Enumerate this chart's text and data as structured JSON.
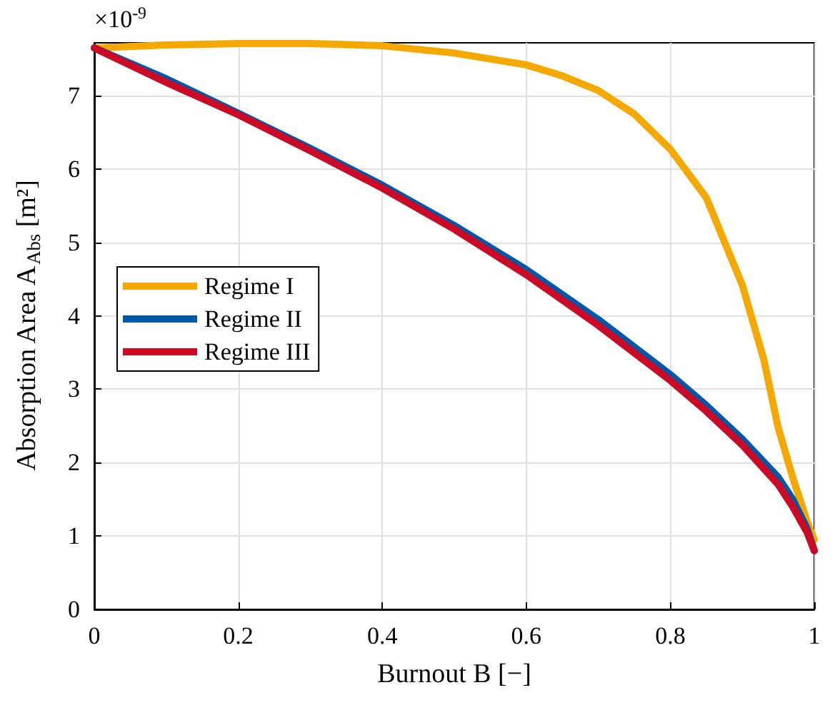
{
  "chart_data": {
    "type": "line",
    "xlabel": "Burnout B [−]",
    "ylabel": "Absorption Area A$_{Abs}$ [m²]",
    "annotations": [
      "×10$^{-9}$"
    ],
    "xlim": [
      0,
      1
    ],
    "xticks": [
      0,
      0.2,
      0.4,
      0.6,
      0.8,
      1
    ],
    "ylim": [
      0,
      7.72
    ],
    "yticks": [
      0,
      1,
      2,
      3,
      4,
      5,
      6,
      7
    ],
    "grid": true,
    "legend": "left",
    "marker": "none",
    "line_style": "solid",
    "series": [
      {
        "name": "Regime I",
        "color": "#f5a800",
        "x": [
          0,
          0.1,
          0.2,
          0.3,
          0.4,
          0.5,
          0.55,
          0.6,
          0.65,
          0.7,
          0.75,
          0.8,
          0.85,
          0.9,
          0.93,
          0.95,
          0.97,
          0.99,
          1
        ],
        "values": [
          7.65,
          7.69,
          7.71,
          7.71,
          7.68,
          7.58,
          7.5,
          7.42,
          7.27,
          7.07,
          6.75,
          6.27,
          5.61,
          4.42,
          3.4,
          2.47,
          1.8,
          1.2,
          0.95
        ]
      },
      {
        "name": "Regime II",
        "color": "#0058a8",
        "x": [
          0,
          0.1,
          0.2,
          0.3,
          0.4,
          0.5,
          0.6,
          0.7,
          0.8,
          0.85,
          0.9,
          0.95,
          0.97,
          0.99,
          1
        ],
        "values": [
          7.65,
          7.23,
          6.76,
          6.28,
          5.78,
          5.23,
          4.63,
          3.95,
          3.2,
          2.78,
          2.32,
          1.8,
          1.5,
          1.1,
          0.8
        ]
      },
      {
        "name": "Regime III",
        "color": "#cc0a26",
        "x": [
          0,
          0.1,
          0.2,
          0.3,
          0.4,
          0.5,
          0.6,
          0.7,
          0.8,
          0.85,
          0.9,
          0.95,
          0.97,
          0.99,
          1
        ],
        "values": [
          7.65,
          7.18,
          6.74,
          6.25,
          5.74,
          5.18,
          4.56,
          3.87,
          3.12,
          2.7,
          2.24,
          1.7,
          1.4,
          1.05,
          0.8
        ]
      }
    ]
  }
}
